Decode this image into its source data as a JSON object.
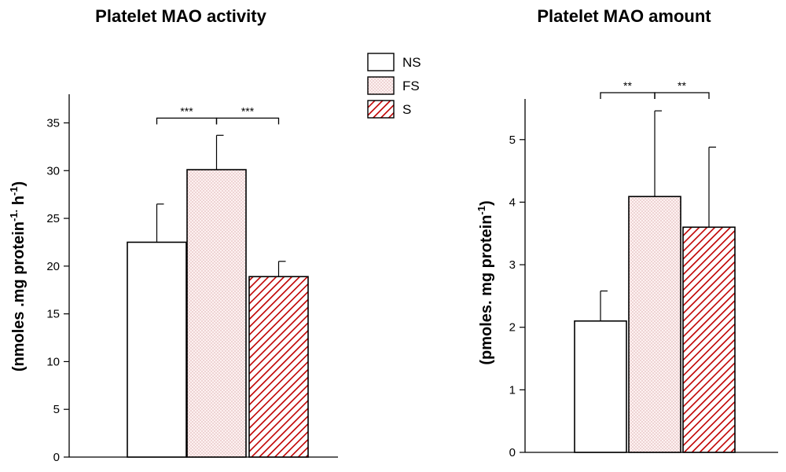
{
  "legend": {
    "items": [
      {
        "label": "NS",
        "pattern": "none"
      },
      {
        "label": "FS",
        "pattern": "dots"
      },
      {
        "label": "S",
        "pattern": "hatch"
      }
    ]
  },
  "colors": {
    "axis": "#000000",
    "fs_dots": "#c98b8b",
    "fs_fill": "#fdf1f1",
    "s_hatch": "#c00000",
    "ns_fill": "#ffffff"
  },
  "chart_data": [
    {
      "type": "bar",
      "title": "Platelet MAO activity",
      "ylabel": "(nmoles .mg protein-1. h-1)",
      "ylabel_parts": {
        "a": "(nmoles .mg protein",
        "sup1": "-1.",
        "b": " h",
        "sup2": "-1",
        "c": ")"
      },
      "ylim": [
        0,
        38
      ],
      "yticks": [
        0,
        5,
        10,
        15,
        20,
        25,
        30,
        35
      ],
      "categories": [
        "NS",
        "FS",
        "S"
      ],
      "values": [
        22.5,
        30.1,
        18.9
      ],
      "errors": [
        4.0,
        3.6,
        1.6
      ],
      "significance": [
        {
          "from": 0,
          "to": 1,
          "label": "***",
          "y": 35.5
        },
        {
          "from": 1,
          "to": 2,
          "label": "***",
          "y": 35.5
        }
      ],
      "grid": false,
      "legend_position": "top-right"
    },
    {
      "type": "bar",
      "title": "Platelet MAO amount",
      "ylabel": "(pmoles. mg protein-1)",
      "ylabel_parts": {
        "a": "(pmoles. mg protein",
        "sup1": "-1",
        "b": "",
        "sup2": "",
        "c": ")"
      },
      "ylim": [
        0,
        5.65
      ],
      "yticks": [
        0,
        1,
        2,
        3,
        4,
        5
      ],
      "categories": [
        "NS",
        "FS",
        "S"
      ],
      "values": [
        2.1,
        4.09,
        3.6
      ],
      "errors": [
        0.48,
        1.37,
        1.28
      ],
      "significance": [
        {
          "from": 0,
          "to": 1,
          "label": "**",
          "y": 5.75
        },
        {
          "from": 1,
          "to": 2,
          "label": "**",
          "y": 5.75
        }
      ],
      "grid": false
    }
  ]
}
